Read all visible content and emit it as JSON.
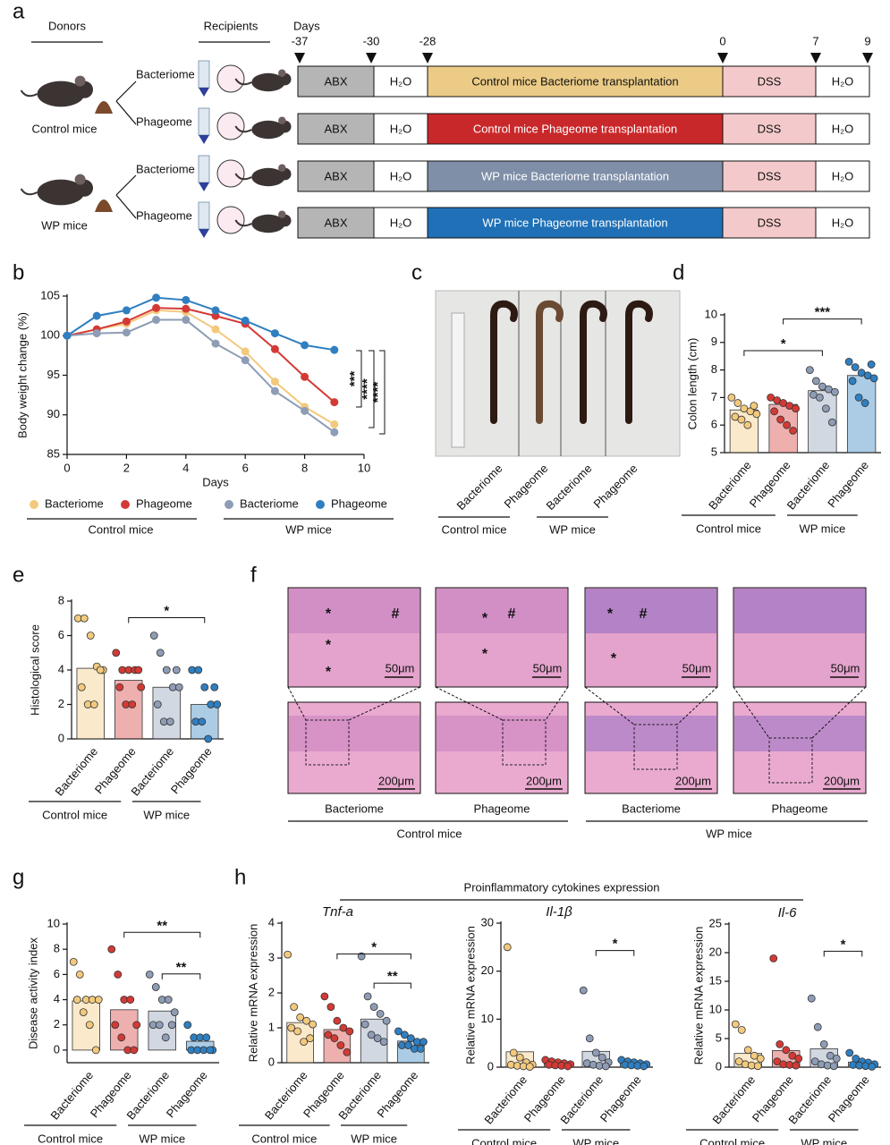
{
  "panel_labels": [
    "a",
    "b",
    "c",
    "d",
    "e",
    "f",
    "g",
    "h"
  ],
  "schematic": {
    "donors": "Donors",
    "recipients": "Recipients",
    "days_label": "Days",
    "days": [
      "-37",
      "-30",
      "-28",
      "0",
      "7",
      "9"
    ],
    "donor_groups": [
      "Control mice",
      "WP mice"
    ],
    "rows": [
      {
        "recipient": "Bacteriome",
        "color": "#ebcb86",
        "phases": [
          "ABX",
          "H₂O",
          "Control mice Bacteriome transplantation",
          "DSS",
          "H₂O"
        ]
      },
      {
        "recipient": "Phageome",
        "color": "#c9282a",
        "phases": [
          "ABX",
          "H₂O",
          "Control mice Phageome transplantation",
          "DSS",
          "H₂O"
        ]
      },
      {
        "recipient": "Bacteriome",
        "color": "#7f8fa8",
        "phases": [
          "ABX",
          "H₂O",
          "WP mice Bacteriome  transplantation",
          "DSS",
          "H₂O"
        ]
      },
      {
        "recipient": "Phageome",
        "color": "#1f70b6",
        "phases": [
          "ABX",
          "H₂O",
          "WP mice Phageome transplantation",
          "DSS",
          "H₂O"
        ]
      }
    ]
  },
  "photo": {
    "samples": [
      "Bacteriome",
      "Phageome",
      "Bacteriome",
      "Phageome"
    ],
    "groups": [
      "Control mice",
      "WP mice"
    ]
  },
  "histology": {
    "top_scale": "50μm",
    "bottom_scale": "200μm",
    "marks": [
      [
        "*",
        "#",
        "*",
        "*"
      ],
      [
        "*",
        "#",
        "*"
      ],
      [
        "*",
        "#",
        "*"
      ],
      []
    ],
    "samples": [
      "Bacteriome",
      "Phageome",
      "Bacteriome",
      "Phageome"
    ],
    "groups": [
      "Control mice",
      "WP mice"
    ]
  },
  "cytokine_title": "Proinflammatory cytokines expression",
  "chart_data": [
    {
      "type": "line",
      "xlabel": "Days",
      "ylabel": "Body weight change (%)",
      "x": [
        0,
        1,
        2,
        3,
        4,
        5,
        6,
        7,
        8,
        9
      ],
      "xlim": [
        0,
        10
      ],
      "xticks": [
        0,
        2,
        4,
        6,
        8,
        10
      ],
      "ylim": [
        85,
        105
      ],
      "yticks": [
        85,
        90,
        95,
        100,
        105
      ],
      "series": [
        {
          "name": "Bacteriome",
          "color": "#f2c97d",
          "values": [
            100,
            100.8,
            101.5,
            103.2,
            103,
            100.8,
            98,
            94.2,
            91,
            88.8
          ]
        },
        {
          "name": "Phageome",
          "color": "#d33a35",
          "values": [
            100,
            100.8,
            101.8,
            103.5,
            103.4,
            102.5,
            101.5,
            98.3,
            94.8,
            91.6
          ]
        },
        {
          "name": "Bacteriome",
          "color": "#8e9db5",
          "values": [
            100,
            100.3,
            100.4,
            102,
            102,
            99,
            96.9,
            93,
            90.5,
            87.8
          ]
        },
        {
          "name": "Phageome",
          "color": "#2f7fc1",
          "values": [
            100,
            102.5,
            103.2,
            104.8,
            104.5,
            103.2,
            101.9,
            100.3,
            98.8,
            98.2
          ]
        }
      ],
      "groups": [
        "Control mice",
        "WP mice"
      ],
      "annotations": [
        "***",
        "****",
        "****"
      ]
    },
    {
      "type": "bar",
      "ylabel": "Colon length (cm)",
      "categories": [
        "Bacteriome",
        "Phageome",
        "Bacteriome",
        "Phageome"
      ],
      "values": [
        6.55,
        6.75,
        7.25,
        7.8
      ],
      "colors": [
        "#f2c97d",
        "#d33a35",
        "#8e9db5",
        "#2f7fc1"
      ],
      "points": [
        [
          7.0,
          6.8,
          6.6,
          6.5,
          6.4,
          6.3,
          6.2,
          6.0,
          6.7
        ],
        [
          7.0,
          6.9,
          6.8,
          6.7,
          6.6,
          6.5,
          6.2,
          6.0,
          5.8
        ],
        [
          8.0,
          7.6,
          7.4,
          7.3,
          7.2,
          7.1,
          7.0,
          6.6,
          6.1
        ],
        [
          8.3,
          8.1,
          7.9,
          7.8,
          7.7,
          7.6,
          7.0,
          6.8,
          8.2
        ]
      ],
      "ylim": [
        5,
        10
      ],
      "yticks": [
        5,
        6,
        7,
        8,
        9,
        10
      ],
      "groups": [
        "Control mice",
        "WP mice"
      ],
      "annotations": [
        "*",
        "***"
      ]
    },
    {
      "type": "bar",
      "ylabel": "Histological score",
      "categories": [
        "Bacteriome",
        "Phageome",
        "Bacteriome",
        "Phageome"
      ],
      "values": [
        4.1,
        3.4,
        3.0,
        2.0
      ],
      "colors": [
        "#f2c97d",
        "#d33a35",
        "#8e9db5",
        "#2f7fc1"
      ],
      "points": [
        [
          7,
          7,
          6,
          4.2,
          4,
          3,
          2,
          2,
          4
        ],
        [
          5,
          4,
          4,
          4,
          3,
          3,
          2,
          2,
          4
        ],
        [
          6,
          5,
          4,
          3,
          3,
          2,
          1,
          1,
          4
        ],
        [
          4,
          4,
          3,
          2,
          2,
          1,
          1,
          0,
          3
        ]
      ],
      "ylim": [
        0,
        8
      ],
      "yticks": [
        0,
        2,
        4,
        6,
        8
      ],
      "groups": [
        "Control mice",
        "WP mice"
      ],
      "annotations": [
        "*"
      ]
    },
    {
      "type": "bar",
      "ylabel": "Disease activity index",
      "categories": [
        "Bacteriome",
        "Phageome",
        "Bacteriome",
        "Phageome"
      ],
      "values": [
        3.9,
        3.2,
        3.1,
        0.7
      ],
      "colors": [
        "#f2c97d",
        "#d33a35",
        "#8e9db5",
        "#2f7fc1"
      ],
      "points": [
        [
          7,
          6,
          4,
          4,
          4,
          4,
          3,
          2,
          0
        ],
        [
          8,
          6,
          4,
          4,
          2,
          2,
          1,
          0,
          0
        ],
        [
          6,
          5,
          4,
          4,
          3,
          2,
          2,
          1,
          2
        ],
        [
          2,
          1,
          1,
          1,
          0,
          0,
          0,
          0,
          0
        ]
      ],
      "ylim": [
        -1,
        10
      ],
      "yticks": [
        0,
        2,
        4,
        6,
        8,
        10
      ],
      "groups": [
        "Control mice",
        "WP mice"
      ],
      "annotations": [
        "**",
        "**"
      ]
    },
    {
      "type": "bar",
      "title": "Tnf-a",
      "ylabel": "Relative mRNA expression",
      "categories": [
        "Bacteriome",
        "Phageome",
        "Bacteriome",
        "Phageome"
      ],
      "values": [
        1.15,
        0.95,
        1.25,
        0.62
      ],
      "colors": [
        "#f2c97d",
        "#d33a35",
        "#8e9db5",
        "#2f7fc1"
      ],
      "points": [
        [
          3.1,
          1.6,
          1.3,
          1.2,
          1.1,
          1.0,
          0.9,
          0.6,
          0.7
        ],
        [
          1.9,
          1.6,
          1.2,
          1.0,
          0.9,
          0.8,
          0.7,
          0.5,
          0.3
        ],
        [
          3.05,
          1.9,
          1.6,
          1.4,
          1.2,
          1.1,
          0.8,
          0.7,
          0.6
        ],
        [
          0.9,
          0.8,
          0.7,
          0.6,
          0.6,
          0.5,
          0.5,
          0.4,
          0.4
        ]
      ],
      "ylim": [
        0,
        4
      ],
      "yticks": [
        0,
        1,
        2,
        3,
        4
      ],
      "groups": [
        "Control mice",
        "WP mice"
      ],
      "annotations": [
        "*",
        "**"
      ]
    },
    {
      "type": "bar",
      "title": "Il-1β",
      "ylabel": "Relative mRNA expression",
      "categories": [
        "Bacteriome",
        "Phageome",
        "Bacteriome",
        "Phageome"
      ],
      "values": [
        3.2,
        0.7,
        3.3,
        0.7
      ],
      "colors": [
        "#f2c97d",
        "#d33a35",
        "#8e9db5",
        "#2f7fc1"
      ],
      "points": [
        [
          25,
          3,
          2,
          1,
          0.5,
          0.5,
          0.3,
          0.2,
          0.1
        ],
        [
          1.5,
          1.2,
          1,
          0.8,
          0.6,
          0.5,
          0.4,
          0.3,
          0.2
        ],
        [
          16,
          6,
          3,
          2,
          1,
          0.8,
          0.5,
          0.3,
          0.2
        ],
        [
          1.5,
          1.2,
          1.0,
          0.8,
          0.6,
          0.5,
          0.4,
          0.3,
          0.2
        ]
      ],
      "ylim": [
        0,
        30
      ],
      "yticks": [
        0,
        10,
        20,
        30
      ],
      "groups": [
        "Control mice",
        "WP mice"
      ],
      "annotations": [
        "*"
      ]
    },
    {
      "type": "bar",
      "title": "Il-6",
      "ylabel": "Relative mRNA expression",
      "categories": [
        "Bacteriome",
        "Phageome",
        "Bacteriome",
        "Phageome"
      ],
      "values": [
        2.4,
        2.9,
        3.2,
        0.9
      ],
      "colors": [
        "#f2c97d",
        "#d33a35",
        "#8e9db5",
        "#2f7fc1"
      ],
      "points": [
        [
          7.5,
          6.5,
          3,
          2,
          1.5,
          1,
          0.5,
          0.3,
          0.2
        ],
        [
          19,
          4,
          3,
          2,
          1.5,
          1,
          0.5,
          0.4,
          0.3
        ],
        [
          12,
          7,
          4,
          2,
          1.5,
          1,
          0.5,
          0.3,
          0.2
        ],
        [
          2.5,
          1.5,
          1,
          0.8,
          0.5,
          0.4,
          0.3,
          0.2,
          0.1
        ]
      ],
      "ylim": [
        0,
        25
      ],
      "yticks": [
        0,
        5,
        10,
        15,
        20,
        25
      ],
      "groups": [
        "Control mice",
        "WP mice"
      ],
      "annotations": [
        "*"
      ]
    }
  ]
}
